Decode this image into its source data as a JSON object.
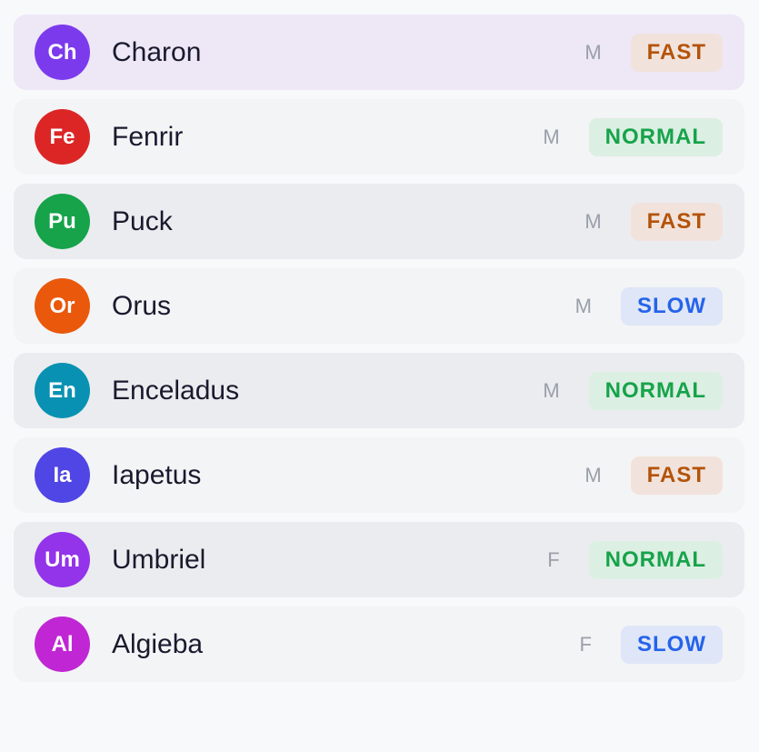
{
  "voices": [
    {
      "initials": "Ch",
      "name": "Charon",
      "gender": "M",
      "speed": "FAST",
      "avatar_color": "#7c3aed",
      "selected": true
    },
    {
      "initials": "Fe",
      "name": "Fenrir",
      "gender": "M",
      "speed": "NORMAL",
      "avatar_color": "#dc2626"
    },
    {
      "initials": "Pu",
      "name": "Puck",
      "gender": "M",
      "speed": "FAST",
      "avatar_color": "#16a34a"
    },
    {
      "initials": "Or",
      "name": "Orus",
      "gender": "M",
      "speed": "SLOW",
      "avatar_color": "#ea580c"
    },
    {
      "initials": "En",
      "name": "Enceladus",
      "gender": "M",
      "speed": "NORMAL",
      "avatar_color": "#0891b2"
    },
    {
      "initials": "Ia",
      "name": "Iapetus",
      "gender": "M",
      "speed": "FAST",
      "avatar_color": "#4f46e5"
    },
    {
      "initials": "Um",
      "name": "Umbriel",
      "gender": "F",
      "speed": "NORMAL",
      "avatar_color": "#9333ea"
    },
    {
      "initials": "Al",
      "name": "Algieba",
      "gender": "F",
      "speed": "SLOW",
      "avatar_color": "#c026d3"
    }
  ],
  "speed_colors": {
    "FAST": {
      "text": "#b45309",
      "bg": "#f1e3dc"
    },
    "NORMAL": {
      "text": "#16a34a",
      "bg": "#dcefe3"
    },
    "SLOW": {
      "text": "#2563eb",
      "bg": "#dfe6f7"
    }
  }
}
